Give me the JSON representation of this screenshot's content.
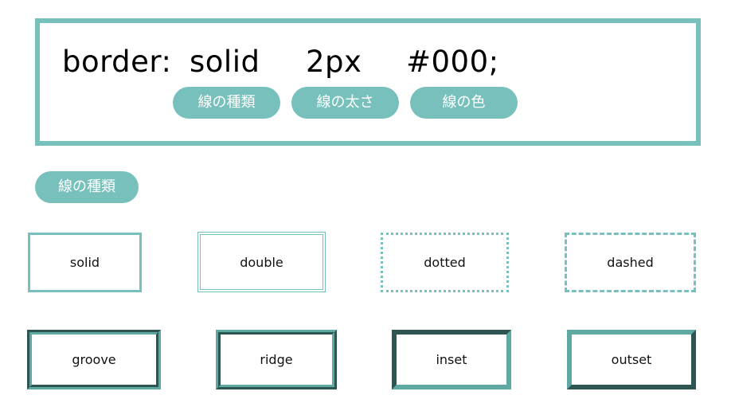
{
  "syntax": {
    "property": "border:",
    "style_value": "solid",
    "width_value": "2px",
    "color_value": "#000;"
  },
  "labels": {
    "line_type": "線の種類",
    "line_width": "線の太さ",
    "line_color": "線の色"
  },
  "section_label": "線の種類",
  "border_styles": [
    "solid",
    "double",
    "dotted",
    "dashed",
    "groove",
    "ridge",
    "inset",
    "outset"
  ],
  "colors": {
    "accent": "#78c0bb",
    "accent_dark": "#5fa9a3",
    "text": "#111111"
  }
}
